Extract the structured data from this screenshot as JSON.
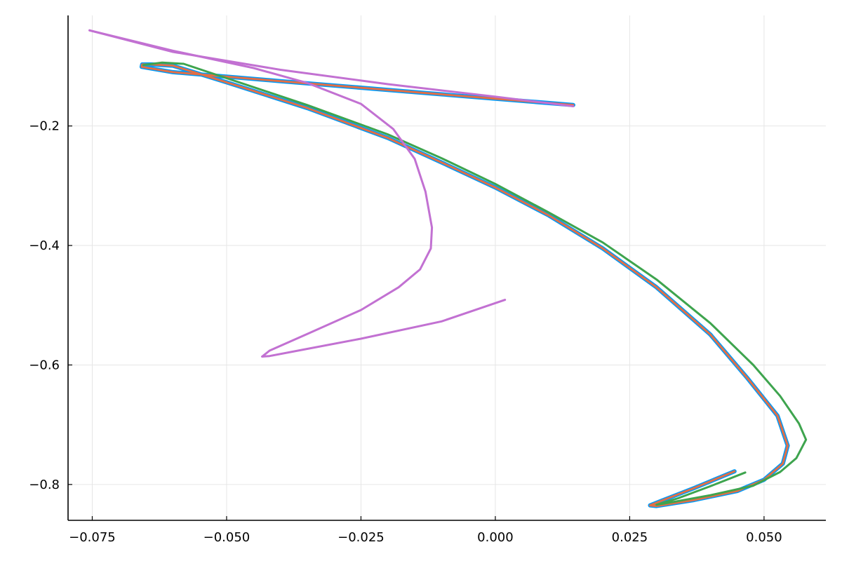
{
  "chart_data": {
    "type": "line",
    "title": "",
    "xlabel": "",
    "ylabel": "",
    "xlim": [
      -0.0795,
      0.0615
    ],
    "ylim": [
      -0.86,
      -0.015
    ],
    "grid": true,
    "legend": "none",
    "x_ticks": [
      {
        "value": -0.075,
        "label": "−0.075"
      },
      {
        "value": -0.05,
        "label": "−0.050"
      },
      {
        "value": -0.025,
        "label": "−0.025"
      },
      {
        "value": 0.0,
        "label": "0.000"
      },
      {
        "value": 0.025,
        "label": "0.025"
      },
      {
        "value": 0.05,
        "label": "0.050"
      }
    ],
    "y_ticks": [
      {
        "value": -0.2,
        "label": "−0.2"
      },
      {
        "value": -0.4,
        "label": "−0.4"
      },
      {
        "value": -0.6,
        "label": "−0.6"
      },
      {
        "value": -0.8,
        "label": "−0.8"
      }
    ],
    "series": [
      {
        "color": "#009af9",
        "width": 6,
        "points": [
          [
            0.0145,
            -0.165
          ],
          [
            -0.01,
            -0.147
          ],
          [
            -0.04,
            -0.125
          ],
          [
            -0.06,
            -0.11
          ],
          [
            -0.0658,
            -0.101
          ],
          [
            -0.0657,
            -0.097
          ],
          [
            -0.064,
            -0.097
          ],
          [
            -0.06,
            -0.099
          ],
          [
            -0.05,
            -0.127
          ],
          [
            -0.035,
            -0.17
          ],
          [
            -0.02,
            -0.22
          ],
          [
            -0.01,
            -0.261
          ],
          [
            0.0,
            -0.303
          ],
          [
            0.01,
            -0.35
          ],
          [
            0.02,
            -0.405
          ],
          [
            0.03,
            -0.47
          ],
          [
            0.04,
            -0.549
          ],
          [
            0.047,
            -0.623
          ],
          [
            0.0525,
            -0.685
          ],
          [
            0.0544,
            -0.735
          ],
          [
            0.0535,
            -0.765
          ],
          [
            0.05,
            -0.792
          ],
          [
            0.045,
            -0.811
          ],
          [
            0.037,
            -0.826
          ],
          [
            0.03,
            -0.836
          ],
          [
            0.0288,
            -0.835
          ],
          [
            0.031,
            -0.827
          ],
          [
            0.037,
            -0.806
          ],
          [
            0.0445,
            -0.778
          ]
        ]
      },
      {
        "color": "#e26f46",
        "width": 3,
        "points": [
          [
            0.0145,
            -0.165
          ],
          [
            -0.01,
            -0.147
          ],
          [
            -0.04,
            -0.125
          ],
          [
            -0.06,
            -0.11
          ],
          [
            -0.0658,
            -0.101
          ],
          [
            -0.0657,
            -0.097
          ],
          [
            -0.064,
            -0.097
          ],
          [
            -0.06,
            -0.099
          ],
          [
            -0.05,
            -0.127
          ],
          [
            -0.035,
            -0.17
          ],
          [
            -0.02,
            -0.22
          ],
          [
            -0.01,
            -0.261
          ],
          [
            0.0,
            -0.303
          ],
          [
            0.01,
            -0.35
          ],
          [
            0.02,
            -0.405
          ],
          [
            0.03,
            -0.47
          ],
          [
            0.04,
            -0.549
          ],
          [
            0.047,
            -0.623
          ],
          [
            0.0525,
            -0.685
          ],
          [
            0.0544,
            -0.735
          ],
          [
            0.0535,
            -0.765
          ],
          [
            0.05,
            -0.792
          ],
          [
            0.045,
            -0.811
          ],
          [
            0.037,
            -0.826
          ],
          [
            0.03,
            -0.836
          ],
          [
            0.0288,
            -0.835
          ],
          [
            0.031,
            -0.827
          ],
          [
            0.037,
            -0.806
          ],
          [
            0.0445,
            -0.778
          ]
        ]
      },
      {
        "color": "#3ea44e",
        "width": 3,
        "points": [
          [
            -0.0655,
            -0.098
          ],
          [
            -0.062,
            -0.094
          ],
          [
            -0.058,
            -0.096
          ],
          [
            -0.05,
            -0.12
          ],
          [
            -0.035,
            -0.165
          ],
          [
            -0.02,
            -0.214
          ],
          [
            -0.01,
            -0.254
          ],
          [
            0.0,
            -0.297
          ],
          [
            0.01,
            -0.345
          ],
          [
            0.02,
            -0.395
          ],
          [
            0.03,
            -0.457
          ],
          [
            0.04,
            -0.53
          ],
          [
            0.048,
            -0.6
          ],
          [
            0.053,
            -0.652
          ],
          [
            0.0565,
            -0.698
          ],
          [
            0.0578,
            -0.725
          ],
          [
            0.056,
            -0.756
          ],
          [
            0.053,
            -0.779
          ],
          [
            0.048,
            -0.802
          ],
          [
            0.04,
            -0.818
          ],
          [
            0.032,
            -0.831
          ],
          [
            0.03,
            -0.834
          ],
          [
            0.034,
            -0.823
          ],
          [
            0.04,
            -0.803
          ],
          [
            0.0465,
            -0.78
          ]
        ]
      },
      {
        "color": "#c271d2",
        "width": 3,
        "points": [
          [
            -0.0755,
            -0.04
          ],
          [
            -0.06,
            -0.074
          ],
          [
            -0.045,
            -0.103
          ],
          [
            -0.035,
            -0.128
          ],
          [
            -0.025,
            -0.163
          ],
          [
            -0.019,
            -0.205
          ],
          [
            -0.015,
            -0.255
          ],
          [
            -0.013,
            -0.31
          ],
          [
            -0.0118,
            -0.37
          ],
          [
            -0.012,
            -0.405
          ],
          [
            -0.014,
            -0.44
          ],
          [
            -0.018,
            -0.47
          ],
          [
            -0.025,
            -0.508
          ],
          [
            -0.035,
            -0.548
          ],
          [
            -0.042,
            -0.576
          ],
          [
            -0.0434,
            -0.586
          ],
          [
            -0.042,
            -0.585
          ],
          [
            -0.035,
            -0.573
          ],
          [
            -0.025,
            -0.556
          ],
          [
            -0.01,
            -0.527
          ],
          [
            0.0018,
            -0.491
          ]
        ]
      },
      {
        "color": "#c271d2",
        "width": 3,
        "points": [
          [
            -0.0755,
            -0.04
          ],
          [
            -0.06,
            -0.076
          ],
          [
            -0.04,
            -0.106
          ],
          [
            -0.02,
            -0.13
          ],
          [
            0.0,
            -0.151
          ],
          [
            0.0145,
            -0.167
          ]
        ]
      }
    ]
  }
}
